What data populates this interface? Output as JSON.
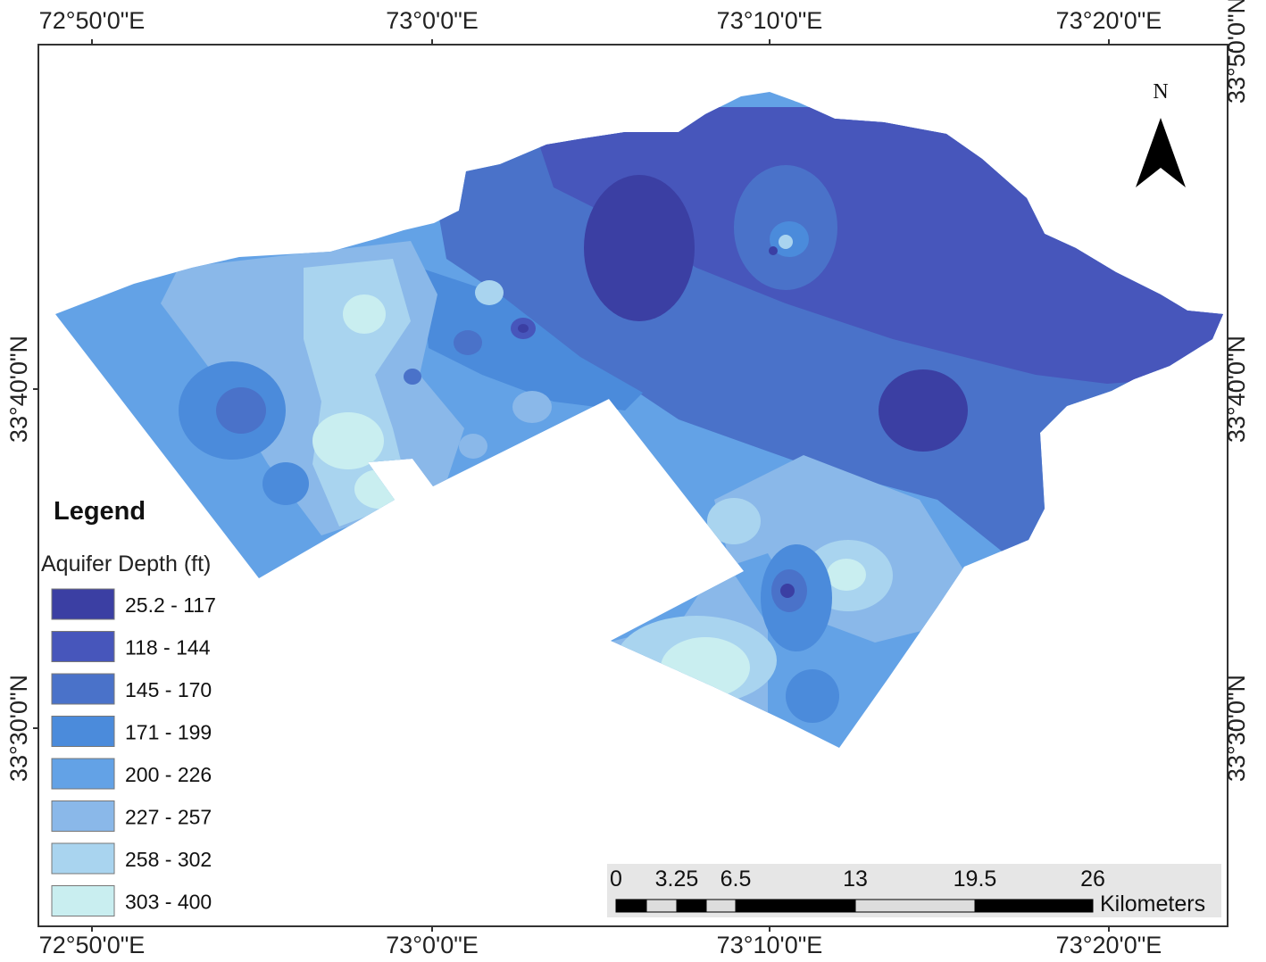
{
  "coordinates": {
    "top": [
      "72°50'0\"E",
      "73°0'0\"E",
      "73°10'0\"E",
      "73°20'0\"E"
    ],
    "bottom": [
      "72°50'0\"E",
      "73°0'0\"E",
      "73°10'0\"E",
      "73°20'0\"E"
    ],
    "left": [
      "33°40'0\"N",
      "33°30'0\"N"
    ],
    "right": [
      "33°50'0\"N",
      "33°40'0\"N",
      "33°30'0\"N"
    ]
  },
  "north_arrow": {
    "label": "N"
  },
  "legend": {
    "title": "Legend",
    "subtitle": "Aquifer Depth (ft)",
    "classes": [
      {
        "range": "25.2 - 117",
        "color": "#3b3fa3"
      },
      {
        "range": "118 - 144",
        "color": "#4756bb"
      },
      {
        "range": "145 - 170",
        "color": "#4a72c9"
      },
      {
        "range": "171 - 199",
        "color": "#4b8bdb"
      },
      {
        "range": "200 - 226",
        "color": "#63a2e6"
      },
      {
        "range": "227 - 257",
        "color": "#8ab8e9"
      },
      {
        "range": "258 - 302",
        "color": "#a9d4ef"
      },
      {
        "range": "303 - 400",
        "color": "#c9eef0"
      }
    ]
  },
  "scale_bar": {
    "labels": [
      "0",
      "3.25",
      "6.5",
      "13",
      "19.5",
      "26"
    ],
    "unit": "Kilometers"
  }
}
